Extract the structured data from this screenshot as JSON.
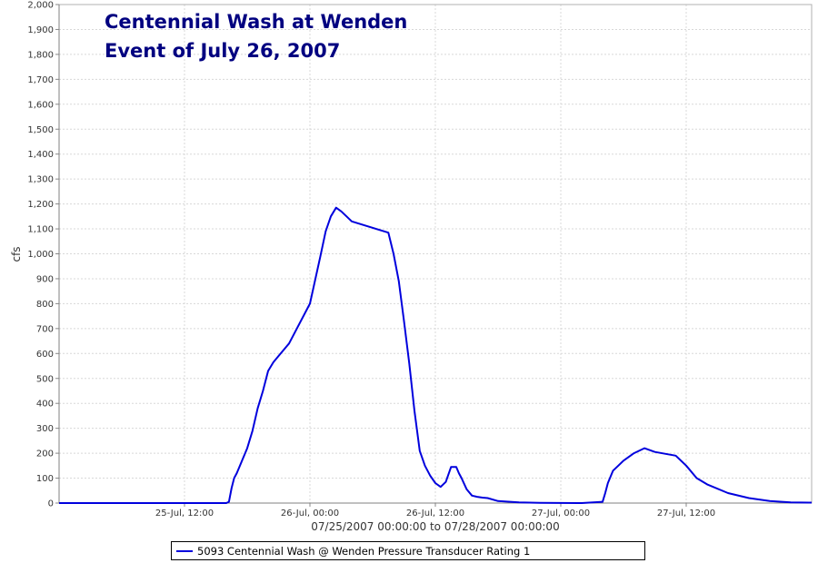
{
  "chart_data": {
    "type": "line",
    "title": [
      "Centennial Wash at Wenden",
      "Event of July 26, 2007"
    ],
    "ylabel": "cfs",
    "xlabel": "07/25/2007 00:00:00 to 07/28/2007 00:00:00",
    "ylim": [
      0,
      2000
    ],
    "y_ticks": [
      0,
      100,
      200,
      300,
      400,
      500,
      600,
      700,
      800,
      900,
      1000,
      1100,
      1200,
      1300,
      1400,
      1500,
      1600,
      1700,
      1800,
      1900,
      2000
    ],
    "y_tick_labels": [
      "0",
      "100",
      "200",
      "300",
      "400",
      "500",
      "600",
      "700",
      "800",
      "900",
      "1,000",
      "1,100",
      "1,200",
      "1,300",
      "1,400",
      "1,500",
      "1,600",
      "1,700",
      "1,800",
      "1,900",
      "2,000"
    ],
    "xlim": [
      "2007-07-25 00:00",
      "2007-07-28 00:00"
    ],
    "x_ticks": [
      "2007-07-25 12:00",
      "2007-07-26 00:00",
      "2007-07-26 12:00",
      "2007-07-27 00:00",
      "2007-07-27 12:00"
    ],
    "x_tick_labels": [
      "25-Jul, 12:00",
      "26-Jul, 00:00",
      "26-Jul, 12:00",
      "27-Jul, 00:00",
      "27-Jul, 12:00"
    ],
    "grid": true,
    "legend_position": "bottom",
    "series": [
      {
        "name": "5093 Centennial Wash @ Wenden Pressure Transducer Rating 1",
        "color": "#0000dd",
        "x": [
          "2007-07-25 00:00",
          "2007-07-25 16:00",
          "2007-07-25 16:15",
          "2007-07-25 16:30",
          "2007-07-25 16:45",
          "2007-07-25 17:00",
          "2007-07-25 17:30",
          "2007-07-25 18:00",
          "2007-07-25 18:30",
          "2007-07-25 19:00",
          "2007-07-25 19:30",
          "2007-07-25 20:00",
          "2007-07-25 20:30",
          "2007-07-25 21:00",
          "2007-07-25 22:00",
          "2007-07-26 00:00",
          "2007-07-26 01:00",
          "2007-07-26 01:30",
          "2007-07-26 02:00",
          "2007-07-26 02:30",
          "2007-07-26 03:00",
          "2007-07-26 03:30",
          "2007-07-26 04:00",
          "2007-07-26 07:30",
          "2007-07-26 08:00",
          "2007-07-26 08:30",
          "2007-07-26 09:00",
          "2007-07-26 09:30",
          "2007-07-26 10:00",
          "2007-07-26 10:30",
          "2007-07-26 11:00",
          "2007-07-26 11:30",
          "2007-07-26 12:00",
          "2007-07-26 12:30",
          "2007-07-26 13:00",
          "2007-07-26 13:30",
          "2007-07-26 14:00",
          "2007-07-26 14:15",
          "2007-07-26 14:30",
          "2007-07-26 15:00",
          "2007-07-26 15:30",
          "2007-07-26 16:00",
          "2007-07-26 16:30",
          "2007-07-26 17:00",
          "2007-07-26 18:00",
          "2007-07-26 20:00",
          "2007-07-26 22:00",
          "2007-07-27 02:00",
          "2007-07-27 04:00",
          "2007-07-27 04:15",
          "2007-07-27 04:30",
          "2007-07-27 05:00",
          "2007-07-27 05:30",
          "2007-07-27 06:00",
          "2007-07-27 07:00",
          "2007-07-27 08:00",
          "2007-07-27 09:00",
          "2007-07-27 11:00",
          "2007-07-27 12:00",
          "2007-07-27 13:00",
          "2007-07-27 14:00",
          "2007-07-27 16:00",
          "2007-07-27 18:00",
          "2007-07-27 20:00",
          "2007-07-27 22:00",
          "2007-07-28 00:00"
        ],
        "y": [
          0,
          0,
          5,
          60,
          100,
          120,
          170,
          220,
          290,
          380,
          450,
          530,
          565,
          590,
          640,
          800,
          990,
          1090,
          1150,
          1185,
          1170,
          1150,
          1130,
          1085,
          1000,
          890,
          730,
          560,
          370,
          210,
          150,
          110,
          80,
          65,
          85,
          145,
          145,
          120,
          100,
          55,
          30,
          25,
          22,
          20,
          8,
          3,
          1,
          0,
          5,
          40,
          80,
          130,
          150,
          170,
          200,
          220,
          205,
          190,
          150,
          100,
          75,
          40,
          20,
          8,
          3,
          2
        ]
      }
    ]
  }
}
